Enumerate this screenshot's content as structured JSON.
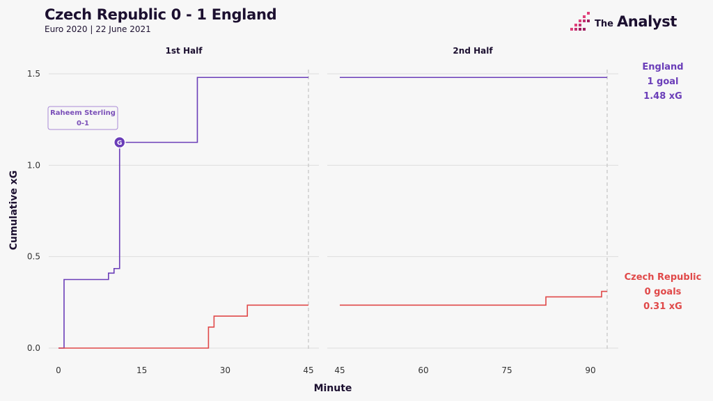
{
  "header": {
    "title": "Czech Republic 0 - 1 England",
    "subtitle": "Euro 2020 | 22 June 2021",
    "logo_prefix": "The",
    "logo_name": "Analyst"
  },
  "colors": {
    "england": "#6a3db8",
    "czech": "#e04848",
    "grid": "#dedede",
    "text": "#1c1030"
  },
  "chart_data": {
    "type": "line",
    "step": true,
    "xlabel": "Minute",
    "ylabel": "Cumulative xG",
    "yticks": [
      0.0,
      0.5,
      1.0,
      1.5
    ],
    "ytick_labels": [
      "0.0",
      "0.5",
      "1.0",
      "1.5"
    ],
    "ylim": [
      0,
      1.5
    ],
    "grid": true,
    "legend_placement": "right",
    "panels": [
      {
        "title": "1st Half",
        "xlim": [
          0,
          45
        ],
        "xticks": [
          0,
          15,
          30,
          45
        ],
        "xtick_labels": [
          "0",
          "15",
          "30",
          "45"
        ],
        "series": [
          {
            "name": "England",
            "points": [
              [
                0,
                0
              ],
              [
                1,
                0.375
              ],
              [
                9,
                0.41
              ],
              [
                10,
                0.435
              ],
              [
                11,
                1.125
              ],
              [
                25,
                1.48
              ],
              [
                45,
                1.48
              ]
            ]
          },
          {
            "name": "Czech Republic",
            "points": [
              [
                0,
                0
              ],
              [
                27,
                0.115
              ],
              [
                28,
                0.175
              ],
              [
                34,
                0.235
              ],
              [
                45,
                0.235
              ]
            ]
          }
        ],
        "annotations": [
          {
            "series": "England",
            "x": 11,
            "y": 1.125,
            "marker": "G",
            "label_line1": "Raheem Sterling",
            "label_line2": "0-1"
          }
        ]
      },
      {
        "title": "2nd Half",
        "xlim": [
          45,
          95
        ],
        "xticks": [
          45,
          60,
          75,
          90
        ],
        "xtick_labels": [
          "45",
          "60",
          "75",
          "90"
        ],
        "series": [
          {
            "name": "England",
            "points": [
              [
                45,
                1.48
              ],
              [
                93,
                1.48
              ]
            ]
          },
          {
            "name": "Czech Republic",
            "points": [
              [
                45,
                0.235
              ],
              [
                82,
                0.235
              ],
              [
                82,
                0.28
              ],
              [
                92,
                0.28
              ],
              [
                92,
                0.31
              ],
              [
                93,
                0.31
              ]
            ]
          }
        ],
        "annotations": []
      }
    ],
    "legend": [
      {
        "team": "England",
        "goals": "1 goal",
        "xg": "1.48 xG"
      },
      {
        "team": "Czech Republic",
        "goals": "0 goals",
        "xg": "0.31 xG"
      }
    ]
  }
}
